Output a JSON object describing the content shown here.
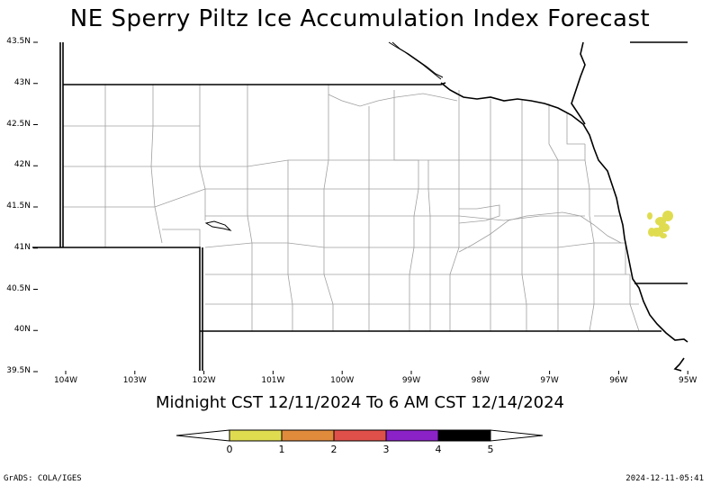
{
  "title": "NE Sperry Piltz Ice Accumulation Index Forecast",
  "subtitle": "Midnight CST 12/11/2024 To 6 AM CST 12/14/2024",
  "footer_left": "GrADS: COLA/IGES",
  "footer_right": "2024-12-11-05:41",
  "lat_ticks": [
    "43.5N",
    "43N",
    "42.5N",
    "42N",
    "41.5N",
    "41N",
    "40.5N",
    "40N",
    "39.5N"
  ],
  "lon_ticks": [
    "104W",
    "103W",
    "102W",
    "101W",
    "100W",
    "99W",
    "98W",
    "97W",
    "96W",
    "95W"
  ],
  "legend": {
    "labels": [
      "0",
      "1",
      "2",
      "3",
      "4",
      "5"
    ],
    "colors": [
      "#e0dc50",
      "#e08a3c",
      "#e0504a",
      "#8a22c8",
      "#000000"
    ]
  },
  "colors": {
    "forecast_area": "#e0dc50",
    "county_lines": "#a0a0a0",
    "state_lines": "#000000"
  }
}
